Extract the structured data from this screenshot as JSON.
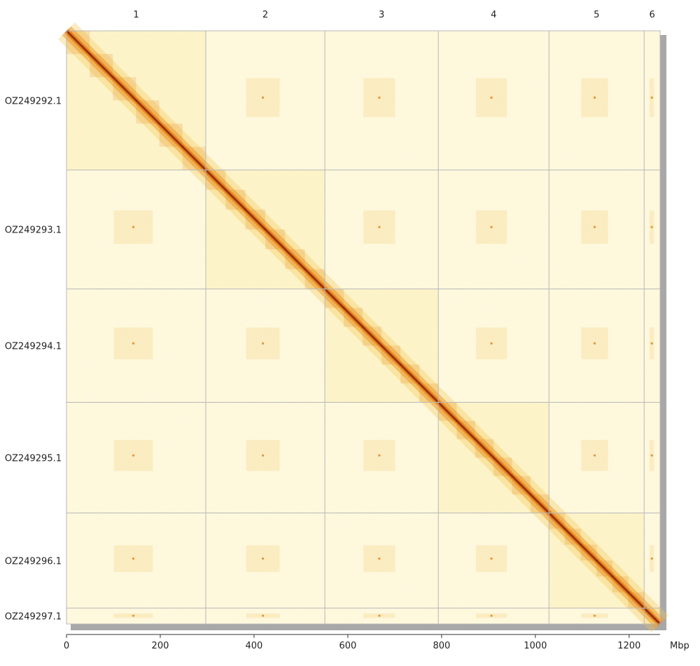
{
  "chart_data": {
    "type": "heatmap",
    "title": "",
    "x_unit": "Mbp",
    "x_ticks": [
      0,
      200,
      400,
      600,
      800,
      1000,
      1200
    ],
    "x_range": [
      0,
      1266
    ],
    "top_labels": [
      "1",
      "2",
      "3",
      "4",
      "5",
      "6"
    ],
    "chromosomes": [
      {
        "name": "OZ249292.1",
        "top_label": "1",
        "start": 0,
        "end": 297
      },
      {
        "name": "OZ249293.1",
        "top_label": "2",
        "start": 297,
        "end": 551
      },
      {
        "name": "OZ249294.1",
        "top_label": "3",
        "start": 551,
        "end": 793
      },
      {
        "name": "OZ249295.1",
        "top_label": "4",
        "start": 793,
        "end": 1029
      },
      {
        "name": "OZ249296.1",
        "top_label": "5",
        "start": 1029,
        "end": 1232
      },
      {
        "name": "OZ249297.1",
        "top_label": "6",
        "start": 1232,
        "end": 1266
      }
    ],
    "colors": {
      "background": "#fffef4",
      "low": "#fdf3c6",
      "mid": "#f3c55a",
      "high": "#e07a12",
      "max": "#8a1a04",
      "boundary": "#b8b8b8",
      "shadow": "#a8a8a8"
    }
  }
}
